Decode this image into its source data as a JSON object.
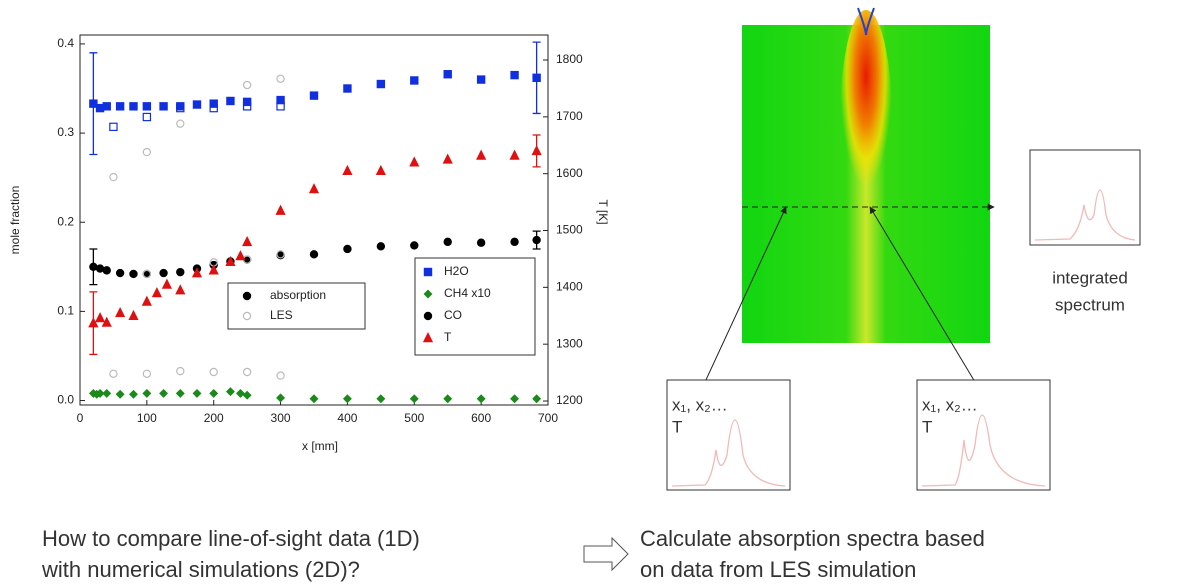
{
  "chart_data": {
    "type": "scatter",
    "xlabel": "x [mm]",
    "ylabel": "mole fraction",
    "y2label": "T [K]",
    "xlim": [
      0,
      700
    ],
    "xticks": [
      0,
      100,
      200,
      300,
      400,
      500,
      600,
      700
    ],
    "ylim": [
      -0.005,
      0.41
    ],
    "yticks": [
      {
        "value": 0,
        "label": "0.0"
      },
      0.1,
      0.2,
      0.3,
      0.4
    ],
    "y2lim": [
      1193,
      1844
    ],
    "y2ticks": [
      1200,
      1300,
      1400,
      1500,
      1600,
      1700,
      1800
    ],
    "legend_method": [
      {
        "label": "absorption",
        "color": "#000000",
        "marker": "circle",
        "filled": true
      },
      {
        "label": "LES",
        "color": "#bbbbbb",
        "marker": "circle",
        "filled": false
      }
    ],
    "legend_species": [
      {
        "label": "H2O",
        "color": "#1030e0",
        "marker": "square",
        "filled": true
      },
      {
        "label": "CH4 x10",
        "color": "#1a8a1a",
        "marker": "diamond",
        "filled": true
      },
      {
        "label": "CO",
        "color": "#000000",
        "marker": "circle",
        "filled": true
      },
      {
        "label": "T",
        "color": "#e01010",
        "marker": "triangle",
        "filled": true
      }
    ],
    "series": [
      {
        "color": "#1030e0",
        "marker": "square",
        "filled": true,
        "axis": "y",
        "x": [
          20,
          30,
          40,
          60,
          80,
          100,
          125,
          150,
          175,
          200,
          225,
          250,
          300,
          350,
          400,
          450,
          500,
          550,
          600,
          650,
          683
        ],
        "values": [
          0.333,
          0.328,
          0.33,
          0.33,
          0.33,
          0.33,
          0.33,
          0.33,
          0.332,
          0.333,
          0.336,
          0.335,
          0.337,
          0.342,
          0.35,
          0.355,
          0.359,
          0.366,
          0.36,
          0.365,
          0.362
        ],
        "errors": [
          0.057,
          null,
          null,
          null,
          null,
          null,
          null,
          null,
          null,
          null,
          null,
          null,
          null,
          null,
          null,
          null,
          null,
          null,
          null,
          null,
          0.04
        ]
      },
      {
        "color": "#1030e0",
        "marker": "square",
        "filled": false,
        "axis": "y",
        "x": [
          50,
          100,
          150,
          200,
          250,
          300
        ],
        "values": [
          0.307,
          0.318,
          0.328,
          0.328,
          0.33,
          0.33
        ]
      },
      {
        "color": "#000000",
        "marker": "circle",
        "filled": true,
        "axis": "y",
        "x": [
          20,
          30,
          40,
          60,
          80,
          100,
          125,
          150,
          175,
          200,
          225,
          250,
          300,
          350,
          400,
          450,
          500,
          550,
          600,
          650,
          683
        ],
        "values": [
          0.15,
          0.148,
          0.146,
          0.143,
          0.142,
          0.142,
          0.143,
          0.144,
          0.148,
          0.152,
          0.156,
          0.158,
          0.163,
          0.164,
          0.17,
          0.173,
          0.174,
          0.178,
          0.177,
          0.178,
          0.18
        ],
        "errors": [
          0.02,
          null,
          null,
          null,
          null,
          null,
          null,
          null,
          null,
          null,
          null,
          null,
          null,
          null,
          null,
          null,
          null,
          null,
          null,
          null,
          0.01
        ]
      },
      {
        "color": "#bbbbbb",
        "marker": "circle",
        "filled": false,
        "axis": "y",
        "x": [
          100,
          200,
          250,
          300
        ],
        "values": [
          0.142,
          0.155,
          0.158,
          0.164
        ]
      },
      {
        "color": "#1a8a1a",
        "marker": "diamond",
        "filled": true,
        "axis": "y",
        "x": [
          20,
          25,
          30,
          40,
          60,
          80,
          100,
          125,
          150,
          175,
          200,
          225,
          240,
          250,
          300,
          350,
          400,
          450,
          500,
          550,
          600,
          650,
          683
        ],
        "values": [
          0.008,
          0.007,
          0.008,
          0.008,
          0.007,
          0.007,
          0.008,
          0.008,
          0.008,
          0.008,
          0.008,
          0.01,
          0.008,
          0.006,
          0.003,
          0.002,
          0.002,
          0.002,
          0.002,
          0.002,
          0.002,
          0.002,
          0.002
        ]
      },
      {
        "color": "#bbbbbb",
        "marker": "circle",
        "filled": false,
        "axis": "y",
        "x": [
          50,
          100,
          150,
          200,
          250,
          300
        ],
        "values": [
          0.03,
          0.03,
          0.033,
          0.032,
          0.032,
          0.028
        ]
      },
      {
        "color": "#e01010",
        "marker": "triangle",
        "filled": true,
        "axis": "y2",
        "x": [
          20,
          30,
          40,
          60,
          80,
          100,
          115,
          130,
          150,
          175,
          200,
          225,
          240,
          250,
          300,
          350,
          400,
          450,
          500,
          550,
          600,
          650,
          683
        ],
        "values": [
          1337,
          1346,
          1338,
          1355,
          1350,
          1375,
          1390,
          1405,
          1395,
          1425,
          1430,
          1445,
          1455,
          1480,
          1535,
          1573,
          1605,
          1605,
          1620,
          1625,
          1632,
          1632,
          1640
        ],
        "errors": [
          55,
          null,
          null,
          null,
          null,
          null,
          null,
          null,
          null,
          null,
          null,
          null,
          null,
          null,
          null,
          null,
          null,
          null,
          null,
          null,
          null,
          null,
          28
        ]
      },
      {
        "color": "#bbbbbb",
        "marker": "circle",
        "filled": false,
        "axis": "y2",
        "x": [
          50,
          100,
          150,
          250,
          300
        ],
        "values": [
          1594,
          1638,
          1688,
          1756,
          1767
        ]
      }
    ]
  },
  "diagram": {
    "integrated_label": [
      "integrated",
      "spectrum"
    ],
    "box_left": {
      "line1": "x₁, x₂…",
      "line2": "T"
    },
    "box_right": {
      "line1": "x₁, x₂…",
      "line2": "T"
    },
    "question": [
      "How to compare line-of-sight data (1D)",
      "with numerical simulations (2D)?"
    ],
    "answer": [
      "Calculate absorption spectra based",
      "on data from LES simulation"
    ]
  }
}
